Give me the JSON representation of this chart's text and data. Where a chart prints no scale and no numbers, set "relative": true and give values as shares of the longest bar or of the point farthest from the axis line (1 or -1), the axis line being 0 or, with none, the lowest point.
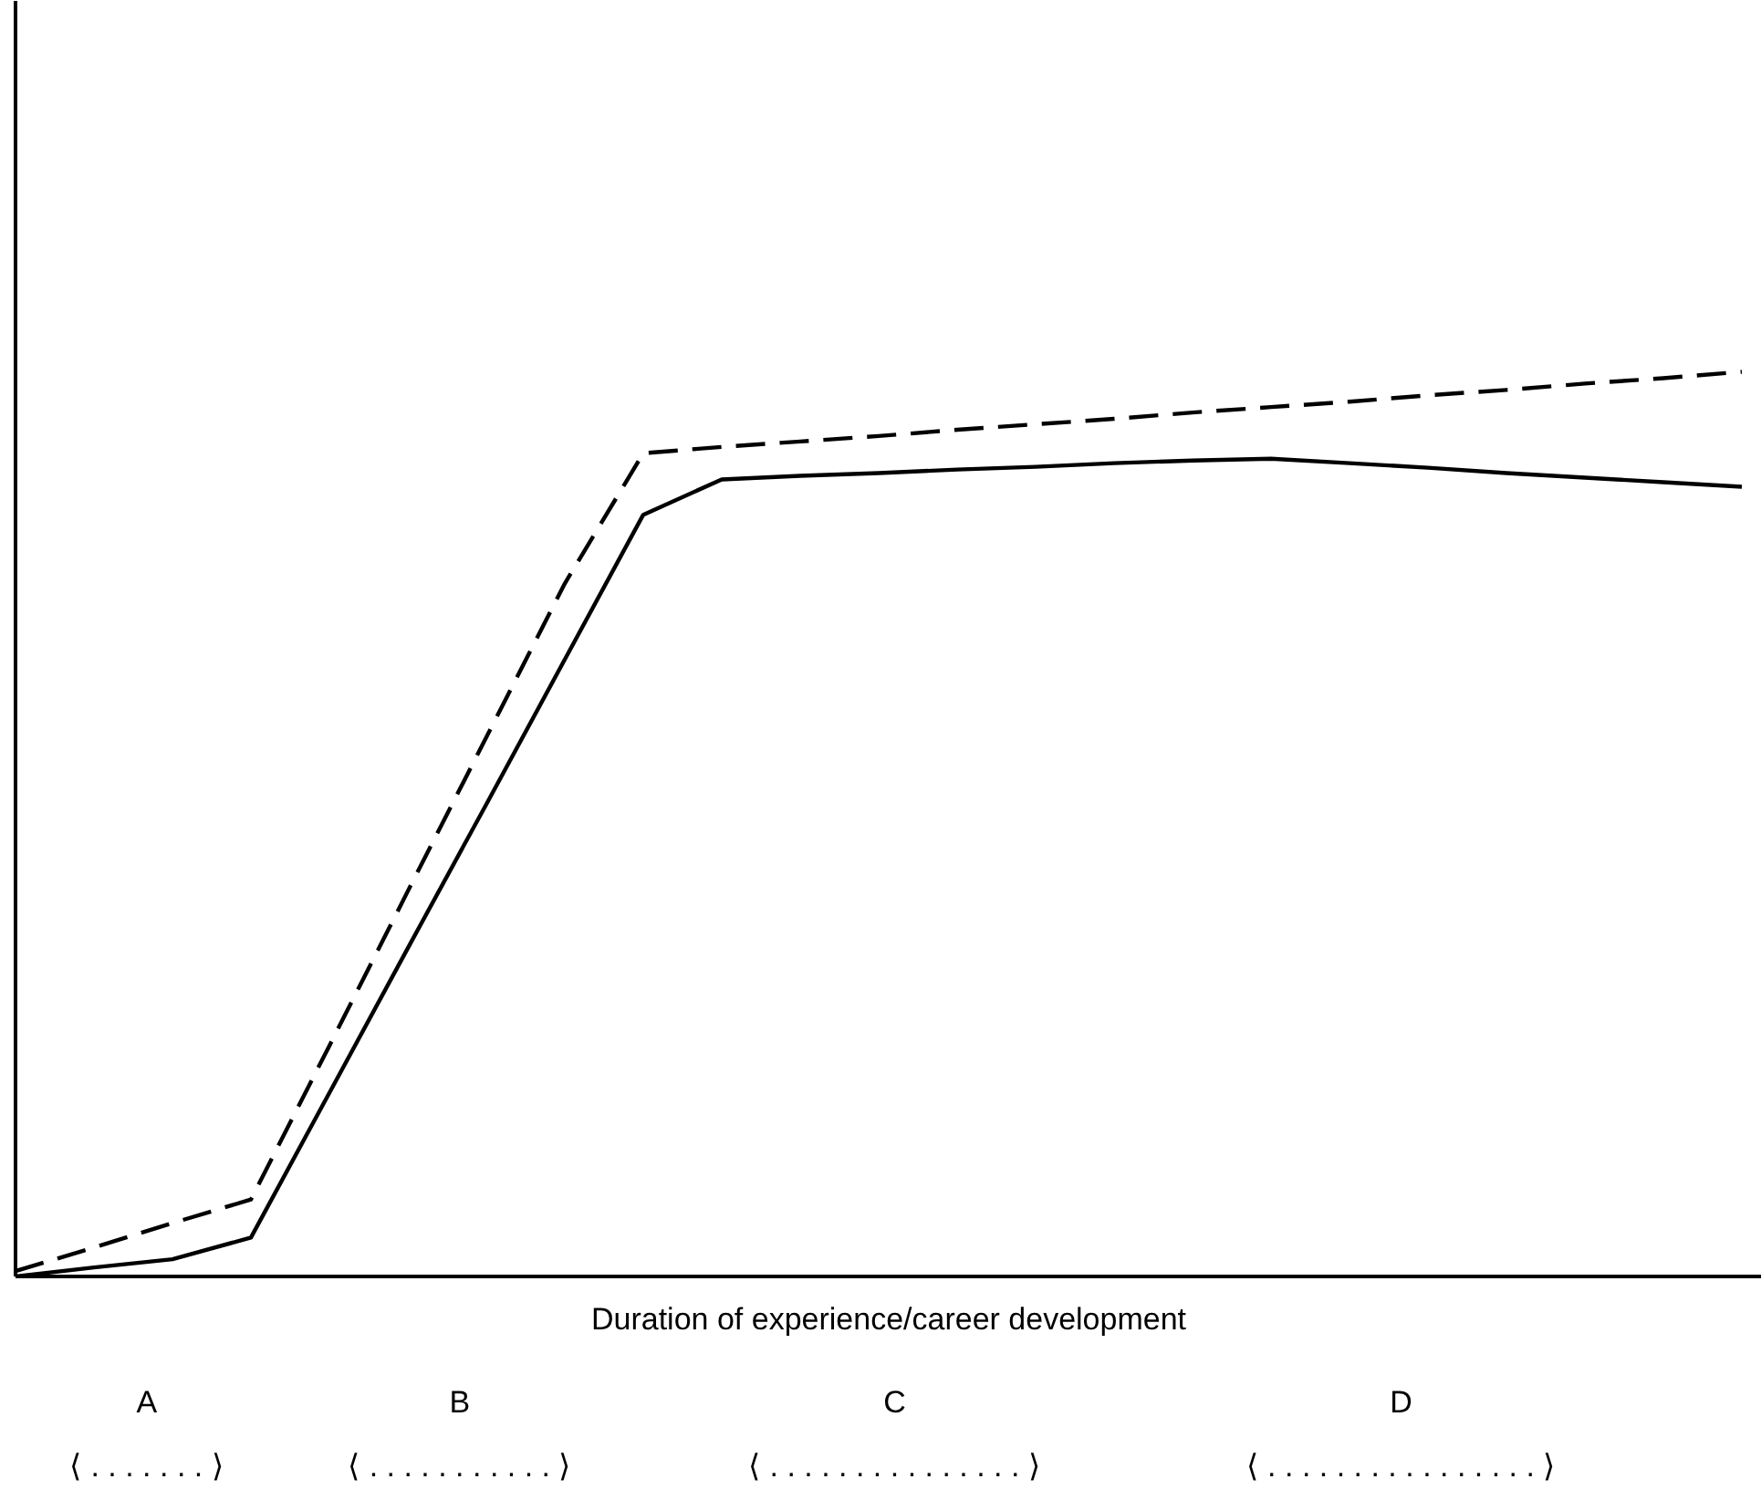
{
  "chart_data": {
    "type": "line",
    "relative": true,
    "xlabel": "Duration of experience/career development",
    "grid": false,
    "marker": "none",
    "categories": [
      null,
      null,
      null,
      null,
      null,
      null,
      null,
      null,
      null,
      null,
      null,
      null,
      null,
      null,
      null,
      null,
      null,
      null,
      null,
      null,
      null,
      null,
      null
    ],
    "series": [
      {
        "color": "#000000",
        "line_style": "solid",
        "values": [
          0,
          0.01,
          0.019,
          0.043,
          0.203,
          0.363,
          0.522,
          0.682,
          0.842,
          0.881,
          0.885,
          0.888,
          0.892,
          0.895,
          0.899,
          0.902,
          0.904,
          0.899,
          0.894,
          0.888,
          0.883,
          0.878,
          0.873
        ]
      },
      {
        "color": "#000000",
        "line_style": "dashed",
        "values": [
          0.006,
          0.032,
          0.059,
          0.085,
          0.255,
          0.426,
          0.596,
          0.766,
          0.91,
          0.917,
          0.923,
          0.929,
          0.936,
          0.942,
          0.948,
          0.955,
          0.961,
          0.967,
          0.974,
          0.98,
          0.987,
          0.993,
          1
        ]
      }
    ],
    "annotations": [
      "A",
      "⟨ . . . . . . . ⟩",
      "B",
      "⟨ . . . . . . . . . . . ⟩",
      "C",
      "⟨ . . . . . . . . . . . . . . . ⟩",
      "D",
      "⟨ . . . . . . . . . . . . . . . . ⟩"
    ]
  }
}
